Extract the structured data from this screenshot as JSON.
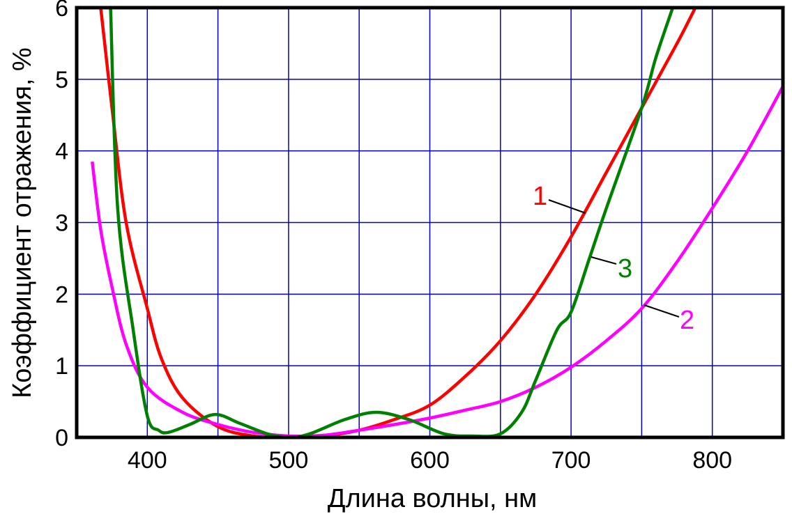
{
  "chart_data": {
    "type": "line",
    "title": "",
    "xlabel": "Длина волны, нм",
    "ylabel": "Коэффициент отражения, %",
    "xlim": [
      350,
      850
    ],
    "ylim": [
      0,
      6
    ],
    "xticks": [
      400,
      500,
      600,
      700,
      800
    ],
    "yticks": [
      0,
      1,
      2,
      3,
      4,
      5,
      6
    ],
    "grid": true,
    "grid_x_step": 50,
    "grid_y_step": 1,
    "grid_color": "#0000cc",
    "series": [
      {
        "name": "1",
        "color": "#ff0000",
        "x": [
          367,
          375,
          385,
          400,
          410,
          425,
          450,
          475,
          500,
          525,
          550,
          575,
          600,
          625,
          650,
          675,
          700,
          725,
          750,
          775,
          788
        ],
        "y": [
          6,
          4.6,
          3.0,
          1.8,
          1.1,
          0.55,
          0.15,
          0.02,
          0,
          0.02,
          0.1,
          0.25,
          0.45,
          0.85,
          1.35,
          2.0,
          2.8,
          3.7,
          4.6,
          5.5,
          6
        ]
      },
      {
        "name": "2",
        "color": "#ff00ff",
        "x": [
          361,
          367,
          375,
          385,
          400,
          425,
          450,
          475,
          500,
          525,
          550,
          575,
          600,
          625,
          650,
          675,
          700,
          725,
          750,
          775,
          800,
          825,
          850
        ],
        "y": [
          3.85,
          2.9,
          2.1,
          1.3,
          0.7,
          0.35,
          0.18,
          0.07,
          0.02,
          0.03,
          0.1,
          0.18,
          0.27,
          0.38,
          0.5,
          0.7,
          0.98,
          1.35,
          1.8,
          2.45,
          3.2,
          4.0,
          4.9
        ]
      },
      {
        "name": "3",
        "color": "#008000",
        "x": [
          374,
          379,
          390,
          400,
          408,
          415,
          430,
          448,
          465,
          485,
          500,
          515,
          540,
          562,
          585,
          610,
          630,
          650,
          665,
          675,
          690,
          700,
          713,
          725,
          750,
          760,
          772
        ],
        "y": [
          6,
          3.2,
          1.5,
          0.3,
          0.1,
          0.07,
          0.18,
          0.32,
          0.2,
          0.05,
          0,
          0.05,
          0.25,
          0.35,
          0.25,
          0.05,
          0.02,
          0.05,
          0.35,
          0.8,
          1.5,
          1.75,
          2.5,
          3.2,
          4.6,
          5.3,
          6
        ]
      }
    ]
  }
}
